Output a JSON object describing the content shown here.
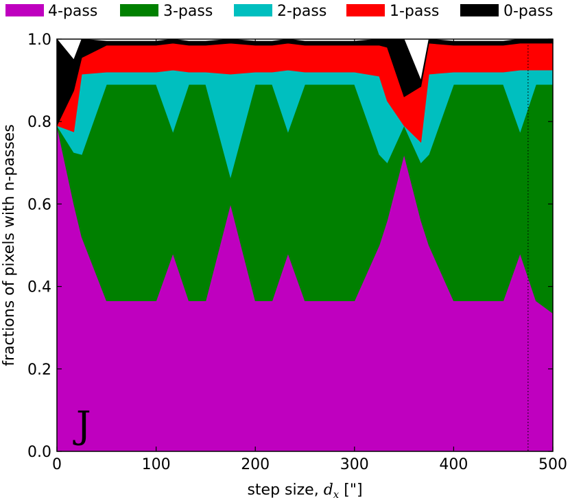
{
  "chart_data": {
    "type": "area",
    "stacked": true,
    "xlabel": "step size, d_x [\"]",
    "xlabel_parts": {
      "prefix": "step size, ",
      "var": "d",
      "sub": "x",
      "suffix": " [\"]"
    },
    "ylabel": "fractions of pixels with n-passes",
    "panel_label": "J",
    "xlim": [
      0,
      500
    ],
    "ylim": [
      0.0,
      1.0
    ],
    "x_ticks": [
      0,
      100,
      200,
      300,
      400,
      500
    ],
    "x_tick_labels": [
      "0",
      "100",
      "200",
      "300",
      "400",
      "500"
    ],
    "y_ticks": [
      0.0,
      0.2,
      0.4,
      0.6,
      0.8,
      1.0
    ],
    "y_tick_labels": [
      "0.0",
      "0.2",
      "0.4",
      "0.6",
      "0.8",
      "1.0"
    ],
    "legend_position": "top, outside",
    "vline_x": 475,
    "x": [
      0,
      17,
      25,
      50,
      100,
      117,
      133,
      150,
      175,
      200,
      217,
      233,
      250,
      300,
      325,
      333,
      350,
      367,
      375,
      400,
      450,
      467,
      483,
      500
    ],
    "series": [
      {
        "name": "4-pass",
        "color": "#bf00bf",
        "values": [
          0.79,
          0.6,
          0.52,
          0.365,
          0.365,
          0.48,
          0.365,
          0.365,
          0.6,
          0.365,
          0.365,
          0.48,
          0.365,
          0.365,
          0.5,
          0.56,
          0.72,
          0.56,
          0.5,
          0.365,
          0.365,
          0.48,
          0.365,
          0.335
        ]
      },
      {
        "name": "3-pass",
        "color": "#008000",
        "values": [
          0.0,
          0.125,
          0.2,
          0.525,
          0.525,
          0.295,
          0.525,
          0.525,
          0.065,
          0.525,
          0.525,
          0.295,
          0.525,
          0.525,
          0.22,
          0.14,
          0.07,
          0.14,
          0.22,
          0.525,
          0.525,
          0.295,
          0.525,
          0.555
        ]
      },
      {
        "name": "2-pass",
        "color": "#00bfbf",
        "values": [
          0.0,
          0.05,
          0.195,
          0.03,
          0.03,
          0.15,
          0.03,
          0.03,
          0.25,
          0.03,
          0.03,
          0.15,
          0.03,
          0.03,
          0.19,
          0.15,
          0.0,
          0.05,
          0.195,
          0.03,
          0.03,
          0.15,
          0.035,
          0.035
        ]
      },
      {
        "name": "1-pass",
        "color": "#ff0000",
        "values": [
          0.0,
          0.1,
          0.04,
          0.065,
          0.065,
          0.065,
          0.065,
          0.065,
          0.075,
          0.065,
          0.065,
          0.065,
          0.065,
          0.065,
          0.075,
          0.13,
          0.07,
          0.135,
          0.075,
          0.065,
          0.065,
          0.065,
          0.065,
          0.065
        ]
      },
      {
        "name": "0-pass",
        "color": "#000000",
        "values": [
          0.21,
          0.075,
          0.045,
          0.01,
          0.01,
          0.01,
          0.01,
          0.01,
          0.01,
          0.01,
          0.01,
          0.01,
          0.01,
          0.01,
          0.015,
          0.02,
          0.14,
          0.015,
          0.01,
          0.01,
          0.01,
          0.01,
          0.01,
          0.01
        ]
      }
    ]
  }
}
